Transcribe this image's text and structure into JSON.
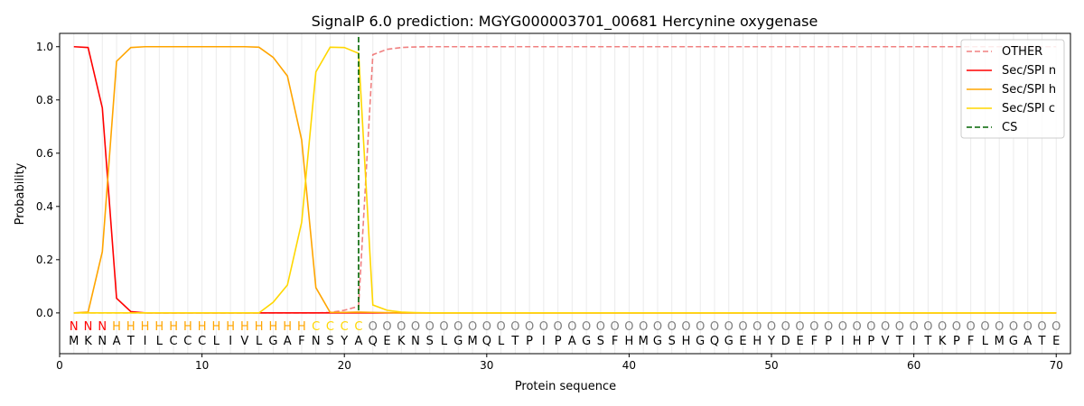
{
  "chart_data": {
    "type": "line",
    "title": "SignalP 6.0 prediction: MGYG000003701_00681 Hercynine oxygenase",
    "xlabel": "Protein sequence",
    "ylabel": "Probability",
    "xlim": [
      0,
      71
    ],
    "ylim": [
      -0.153,
      1.05
    ],
    "xticks": [
      0,
      10,
      20,
      30,
      40,
      50,
      60,
      70
    ],
    "yticks": [
      "0.0",
      "0.2",
      "0.4",
      "0.6",
      "0.8",
      "1.0"
    ],
    "grid": "vertical lines at each residue",
    "legend_position": "top-right",
    "sequence": [
      "M",
      "K",
      "N",
      "A",
      "T",
      "I",
      "L",
      "C",
      "C",
      "C",
      "L",
      "I",
      "V",
      "L",
      "G",
      "A",
      "F",
      "N",
      "S",
      "Y",
      "A",
      "Q",
      "E",
      "K",
      "N",
      "S",
      "L",
      "G",
      "M",
      "Q",
      "L",
      "T",
      "P",
      "I",
      "P",
      "A",
      "G",
      "S",
      "F",
      "H",
      "M",
      "G",
      "S",
      "H",
      "G",
      "Q",
      "G",
      "E",
      "H",
      "Y",
      "D",
      "E",
      "F",
      "P",
      "I",
      "H",
      "P",
      "V",
      "T",
      "I",
      "T",
      "K",
      "P",
      "F",
      "L",
      "M",
      "G",
      "A",
      "T",
      "E"
    ],
    "labels": [
      "N",
      "N",
      "N",
      "H",
      "H",
      "H",
      "H",
      "H",
      "H",
      "H",
      "H",
      "H",
      "H",
      "H",
      "H",
      "H",
      "H",
      "C",
      "C",
      "C",
      "C",
      "O",
      "O",
      "O",
      "O",
      "O",
      "O",
      "O",
      "O",
      "O",
      "O",
      "O",
      "O",
      "O",
      "O",
      "O",
      "O",
      "O",
      "O",
      "O",
      "O",
      "O",
      "O",
      "O",
      "O",
      "O",
      "O",
      "O",
      "O",
      "O",
      "O",
      "O",
      "O",
      "O",
      "O",
      "O",
      "O",
      "O",
      "O",
      "O",
      "O",
      "O",
      "O",
      "O",
      "O",
      "O",
      "O",
      "O",
      "O",
      "O"
    ],
    "label_colors": {
      "N": "#ff0000",
      "H": "#ffa500",
      "C": "#ffd700",
      "O": "#808080"
    },
    "cs_position": 21,
    "series": [
      {
        "name": "OTHER",
        "color": "#f08080",
        "dash": true,
        "values": [
          0,
          0,
          0,
          0,
          0,
          0,
          0,
          0,
          0,
          0,
          0,
          0,
          0,
          0,
          0,
          0,
          0,
          0,
          0.002,
          0.01,
          0.025,
          0.97,
          0.99,
          0.997,
          0.999,
          1,
          1,
          1,
          1,
          1,
          1,
          1,
          1,
          1,
          1,
          1,
          1,
          1,
          1,
          1,
          1,
          1,
          1,
          1,
          1,
          1,
          1,
          1,
          1,
          1,
          1,
          1,
          1,
          1,
          1,
          1,
          1,
          1,
          1,
          1,
          1,
          1,
          1,
          1,
          1,
          1,
          1,
          1,
          1,
          1
        ]
      },
      {
        "name": "Sec/SPI n",
        "color": "#ff0000",
        "values": [
          1.0,
          0.997,
          0.77,
          0.055,
          0.005,
          0,
          0,
          0,
          0,
          0,
          0,
          0,
          0,
          0,
          0,
          0,
          0,
          0,
          0,
          0,
          0,
          0,
          0,
          0,
          0,
          0,
          0,
          0,
          0,
          0,
          0,
          0,
          0,
          0,
          0,
          0,
          0,
          0,
          0,
          0,
          0,
          0,
          0,
          0,
          0,
          0,
          0,
          0,
          0,
          0,
          0,
          0,
          0,
          0,
          0,
          0,
          0,
          0,
          0,
          0,
          0,
          0,
          0,
          0,
          0,
          0,
          0,
          0,
          0,
          0
        ]
      },
      {
        "name": "Sec/SPI h",
        "color": "#ffa500",
        "values": [
          0,
          0.003,
          0.23,
          0.945,
          0.997,
          1,
          1,
          1,
          1,
          1,
          1,
          1,
          1,
          0.998,
          0.96,
          0.89,
          0.65,
          0.095,
          0.002,
          0.002,
          0.003,
          0.002,
          0.001,
          0,
          0,
          0,
          0,
          0,
          0,
          0,
          0,
          0,
          0,
          0,
          0,
          0,
          0,
          0,
          0,
          0,
          0,
          0,
          0,
          0,
          0,
          0,
          0,
          0,
          0,
          0,
          0,
          0,
          0,
          0,
          0,
          0,
          0,
          0,
          0,
          0,
          0,
          0,
          0,
          0,
          0,
          0,
          0,
          0,
          0,
          0
        ]
      },
      {
        "name": "Sec/SPI c",
        "color": "#ffd700",
        "values": [
          0,
          0,
          0,
          0,
          0,
          0,
          0,
          0,
          0,
          0,
          0,
          0,
          0,
          0,
          0.04,
          0.105,
          0.34,
          0.905,
          0.998,
          0.997,
          0.975,
          0.03,
          0.01,
          0.003,
          0.001,
          0,
          0,
          0,
          0,
          0,
          0,
          0,
          0,
          0,
          0,
          0,
          0,
          0,
          0,
          0,
          0,
          0,
          0,
          0,
          0,
          0,
          0,
          0,
          0,
          0,
          0,
          0,
          0,
          0,
          0,
          0,
          0,
          0,
          0,
          0,
          0,
          0,
          0,
          0,
          0,
          0,
          0,
          0,
          0,
          0
        ]
      },
      {
        "name": "CS",
        "color": "#006400",
        "dash": true,
        "legend_only_marker": true
      }
    ]
  }
}
